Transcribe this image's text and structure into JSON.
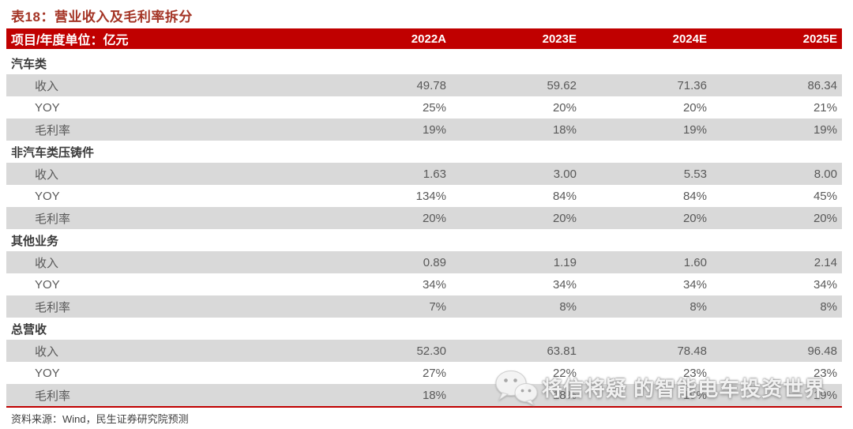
{
  "page": {
    "title": "表18：营业收入及毛利率拆分",
    "source": "资料来源：Wind，民生证券研究院预测"
  },
  "table": {
    "header": {
      "label": "项目/年度单位：亿元",
      "columns": [
        "2022A",
        "2023E",
        "2024E",
        "2025E"
      ]
    },
    "sections": [
      {
        "name": "汽车类",
        "rows": [
          {
            "label": "收入",
            "values": [
              "49.78",
              "59.62",
              "71.36",
              "86.34"
            ]
          },
          {
            "label": "YOY",
            "values": [
              "25%",
              "20%",
              "20%",
              "21%"
            ]
          },
          {
            "label": "毛利率",
            "values": [
              "19%",
              "18%",
              "19%",
              "19%"
            ]
          }
        ]
      },
      {
        "name": "非汽车类压铸件",
        "rows": [
          {
            "label": "收入",
            "values": [
              "1.63",
              "3.00",
              "5.53",
              "8.00"
            ]
          },
          {
            "label": "YOY",
            "values": [
              "134%",
              "84%",
              "84%",
              "45%"
            ]
          },
          {
            "label": "毛利率",
            "values": [
              "20%",
              "20%",
              "20%",
              "20%"
            ]
          }
        ]
      },
      {
        "name": "其他业务",
        "rows": [
          {
            "label": "收入",
            "values": [
              "0.89",
              "1.19",
              "1.60",
              "2.14"
            ]
          },
          {
            "label": "YOY",
            "values": [
              "34%",
              "34%",
              "34%",
              "34%"
            ]
          },
          {
            "label": "毛利率",
            "values": [
              "7%",
              "8%",
              "8%",
              "8%"
            ]
          }
        ]
      },
      {
        "name": "总营收",
        "rows": [
          {
            "label": "收入",
            "values": [
              "52.30",
              "63.81",
              "78.48",
              "96.48"
            ]
          },
          {
            "label": "YOY",
            "values": [
              "27%",
              "22%",
              "23%",
              "23%"
            ]
          },
          {
            "label": "毛利率",
            "values": [
              "18%",
              "18%",
              "19%",
              "19%"
            ]
          }
        ]
      }
    ]
  },
  "watermark": {
    "icon": "wechat-icon",
    "text": "将信将疑 的智能电车投资世界"
  },
  "colors": {
    "accent_red": "#C00000",
    "title_red": "#A43425",
    "row_gray": "#D9D9D9",
    "body_text": "#595959"
  }
}
